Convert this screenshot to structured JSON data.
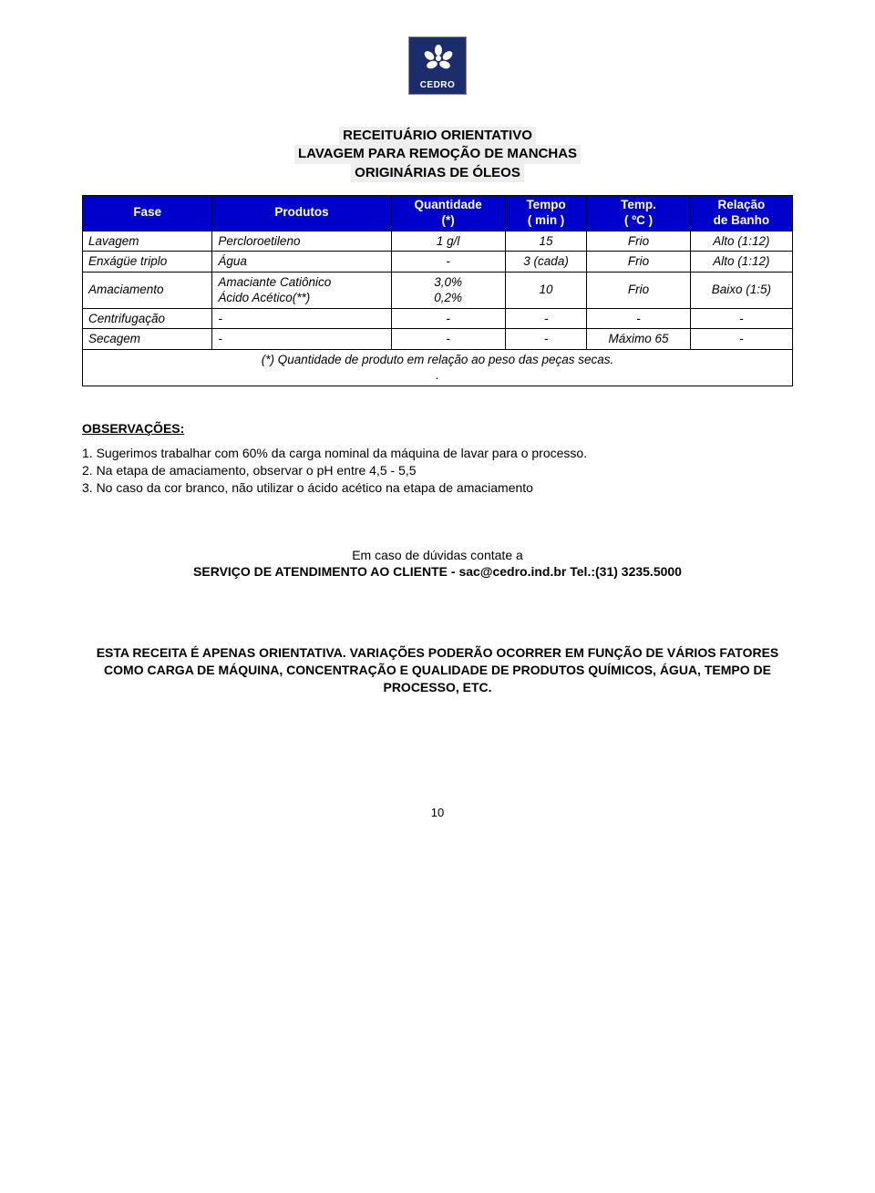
{
  "logo": {
    "brand": "CEDRO"
  },
  "title": {
    "line1": "RECEITUÁRIO ORIENTATIVO",
    "line2": "LAVAGEM PARA REMOÇÃO DE MANCHAS",
    "line3": "ORIGINÁRIAS DE ÓLEOS"
  },
  "table": {
    "header_bg": "#0000cc",
    "header_fg": "#ffffff",
    "columns": [
      {
        "l1": "Fase",
        "l2": ""
      },
      {
        "l1": "Produtos",
        "l2": ""
      },
      {
        "l1": "Quantidade",
        "l2": "(*)"
      },
      {
        "l1": "Tempo",
        "l2": "( min )"
      },
      {
        "l1": "Temp.",
        "l2": "( ºC )"
      },
      {
        "l1": "Relação",
        "l2": "de Banho"
      }
    ],
    "rows": [
      {
        "fase": "Lavagem",
        "produtos": "Percloroetileno",
        "qtd": "1 g/l",
        "tempo": "15",
        "temp": "Frio",
        "rel": "Alto (1:12)"
      },
      {
        "fase": "Enxágüe triplo",
        "produtos": "Água",
        "qtd": "-",
        "tempo": "3 (cada)",
        "temp": "Frio",
        "rel": "Alto (1:12)"
      },
      {
        "fase": "Amaciamento",
        "produtos": "Amaciante Catiônico\nÁcido Acético(**)",
        "qtd": "3,0%\n0,2%",
        "tempo": "10",
        "temp": "Frio",
        "rel": "Baixo (1:5)"
      },
      {
        "fase": "Centrifugação",
        "produtos": "-",
        "qtd": "-",
        "tempo": "-",
        "temp": "-",
        "rel": "-"
      },
      {
        "fase": "Secagem",
        "produtos": "-",
        "qtd": "-",
        "tempo": "-",
        "temp": "Máximo 65",
        "rel": "-"
      }
    ],
    "footnote": "(*) Quantidade de produto em relação ao peso das peças secas.\n."
  },
  "observations": {
    "heading": "OBSERVAÇÕES:",
    "items": [
      "1. Sugerimos trabalhar com 60% da carga nominal da máquina de lavar para o processo.",
      "2. Na etapa de amaciamento, observar o pH entre 4,5 - 5,5",
      "3. No caso da cor branco, não utilizar o ácido acético na etapa de amaciamento"
    ]
  },
  "contact": {
    "line1": "Em caso de dúvidas contate a",
    "line2": "SERVIÇO DE ATENDIMENTO AO CLIENTE - sac@cedro.ind.br   Tel.:(31) 3235.5000"
  },
  "disclaimer": "ESTA RECEITA É APENAS ORIENTATIVA. VARIAÇÕES PODERÃO OCORRER EM FUNÇÃO DE VÁRIOS FATORES COMO CARGA DE MÁQUINA, CONCENTRAÇÃO E QUALIDADE DE PRODUTOS QUÍMICOS, ÁGUA, TEMPO DE PROCESSO, ETC.",
  "page_number": "10"
}
